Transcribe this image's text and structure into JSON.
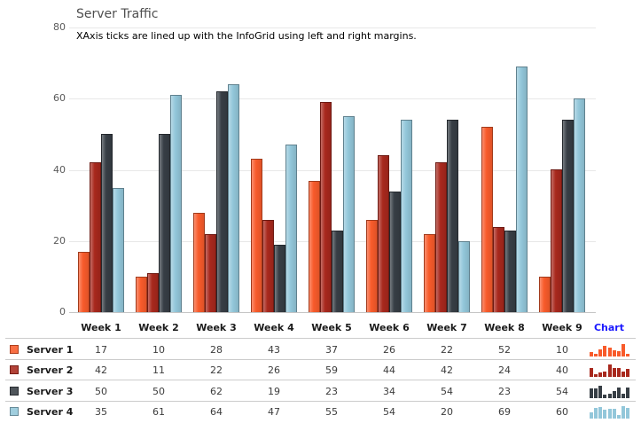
{
  "chart": {
    "title": "Server Traffic",
    "subtitle": "XAxis ticks are lined up with the InfoGrid using left and right margins.",
    "chart_data": {
      "type": "bar",
      "categories": [
        "Week 1",
        "Week 2",
        "Week 3",
        "Week 4",
        "Week 5",
        "Week 6",
        "Week 7",
        "Week 8",
        "Week 9"
      ],
      "series": [
        {
          "name": "Server 1",
          "color": "#f85b2b",
          "values": [
            17,
            10,
            28,
            43,
            37,
            26,
            22,
            52,
            10
          ]
        },
        {
          "name": "Server 2",
          "color": "#a8281d",
          "values": [
            42,
            11,
            22,
            26,
            59,
            44,
            42,
            24,
            40
          ]
        },
        {
          "name": "Server 3",
          "color": "#373e45",
          "values": [
            50,
            50,
            62,
            19,
            23,
            34,
            54,
            23,
            54
          ]
        },
        {
          "name": "Server 4",
          "color": "#93c7da",
          "values": [
            35,
            61,
            64,
            47,
            55,
            54,
            20,
            69,
            60
          ]
        }
      ],
      "ylim": [
        0,
        80
      ],
      "yticks": [
        0,
        20,
        40,
        60,
        80
      ],
      "grid": true,
      "legend_position": "info-grid-below"
    },
    "colors": {
      "gridline": "#e8e8e8",
      "axis_line": "#c4c4c4",
      "title_text": "#4f4f4f",
      "subtitle_text": "#000000",
      "tick_text": "#5a5a5a"
    }
  },
  "info_grid": {
    "chart_column_header": "Chart",
    "chart_header_color": "#1a18ff",
    "separator_color": "#cccccc"
  }
}
